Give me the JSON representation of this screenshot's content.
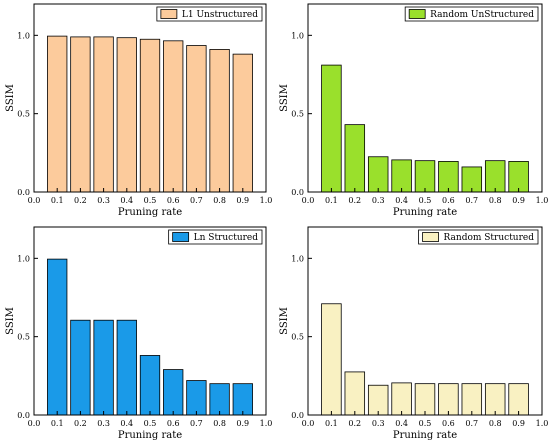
{
  "chart_data": [
    {
      "type": "bar",
      "x": [
        0.1,
        0.2,
        0.3,
        0.4,
        0.5,
        0.6,
        0.7,
        0.8,
        0.9
      ],
      "series": [
        {
          "name": "L1 Unstructured",
          "values": [
            0.995,
            0.99,
            0.99,
            0.985,
            0.975,
            0.965,
            0.935,
            0.91,
            0.88
          ],
          "color": "#FCCB9C"
        }
      ],
      "xlabel": "Pruning rate",
      "ylabel": "SSIM",
      "xlim": [
        0.0,
        1.0
      ],
      "ylim": [
        0.0,
        1.2
      ],
      "xticks": [
        "0.0",
        "0.1",
        "0.2",
        "0.3",
        "0.4",
        "0.5",
        "0.6",
        "0.7",
        "0.8",
        "0.9",
        "1.0"
      ],
      "yticks": [
        "0.0",
        "0.5",
        "1.0"
      ],
      "legend": "top-right",
      "grid": false
    },
    {
      "type": "bar",
      "x": [
        0.1,
        0.2,
        0.3,
        0.4,
        0.5,
        0.6,
        0.7,
        0.8,
        0.9
      ],
      "series": [
        {
          "name": "Random UnStructured",
          "values": [
            0.81,
            0.43,
            0.225,
            0.205,
            0.2,
            0.195,
            0.16,
            0.2,
            0.195
          ],
          "color": "#9AE02C"
        }
      ],
      "xlabel": "Pruning rate",
      "ylabel": "SSIM",
      "xlim": [
        0.0,
        1.0
      ],
      "ylim": [
        0.0,
        1.2
      ],
      "xticks": [
        "0.0",
        "0.1",
        "0.2",
        "0.3",
        "0.4",
        "0.5",
        "0.6",
        "0.7",
        "0.8",
        "0.9",
        "1.0"
      ],
      "yticks": [
        "0.0",
        "0.5",
        "1.0"
      ],
      "legend": "top-right",
      "grid": false
    },
    {
      "type": "bar",
      "x": [
        0.1,
        0.2,
        0.3,
        0.4,
        0.5,
        0.6,
        0.7,
        0.8,
        0.9
      ],
      "series": [
        {
          "name": "Ln Structured",
          "values": [
            0.995,
            0.605,
            0.605,
            0.605,
            0.38,
            0.29,
            0.22,
            0.2,
            0.2
          ],
          "color": "#1A9AE8"
        }
      ],
      "xlabel": "Pruning rate",
      "ylabel": "SSIM",
      "xlim": [
        0.0,
        1.0
      ],
      "ylim": [
        0.0,
        1.2
      ],
      "xticks": [
        "0.0",
        "0.1",
        "0.2",
        "0.3",
        "0.4",
        "0.5",
        "0.6",
        "0.7",
        "0.8",
        "0.9",
        "1.0"
      ],
      "yticks": [
        "0.0",
        "0.5",
        "1.0"
      ],
      "legend": "top-right",
      "grid": false
    },
    {
      "type": "bar",
      "x": [
        0.1,
        0.2,
        0.3,
        0.4,
        0.5,
        0.6,
        0.7,
        0.8,
        0.9
      ],
      "series": [
        {
          "name": "Random Structured",
          "values": [
            0.71,
            0.275,
            0.19,
            0.205,
            0.2,
            0.2,
            0.2,
            0.2,
            0.2
          ],
          "color": "#F9F1C2"
        }
      ],
      "xlabel": "Pruning rate",
      "ylabel": "SSIM",
      "xlim": [
        0.0,
        1.0
      ],
      "ylim": [
        0.0,
        1.2
      ],
      "xticks": [
        "0.0",
        "0.1",
        "0.2",
        "0.3",
        "0.4",
        "0.5",
        "0.6",
        "0.7",
        "0.8",
        "0.9",
        "1.0"
      ],
      "yticks": [
        "0.0",
        "0.5",
        "1.0"
      ],
      "legend": "top-right",
      "grid": false
    }
  ]
}
